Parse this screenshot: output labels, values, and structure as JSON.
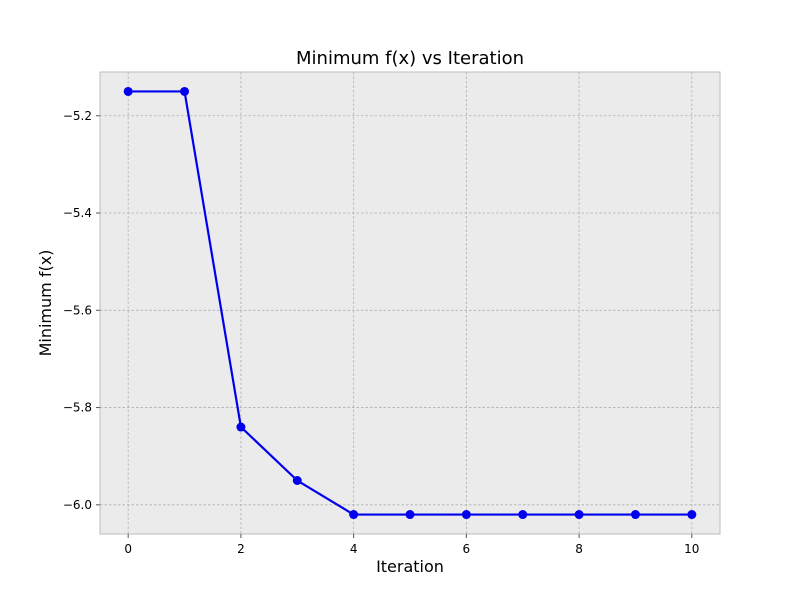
{
  "chart_data": {
    "type": "line",
    "title": "Minimum f(x) vs Iteration",
    "xlabel": "Iteration",
    "ylabel": "Minimum f(x)",
    "x": [
      0,
      1,
      2,
      3,
      4,
      5,
      6,
      7,
      8,
      9,
      10
    ],
    "series": [
      {
        "values": [
          -5.15,
          -5.15,
          -5.84,
          -5.95,
          -6.02,
          -6.02,
          -6.02,
          -6.02,
          -6.02,
          -6.02,
          -6.02
        ],
        "color": "#0000ee",
        "marker": "circle"
      }
    ],
    "xlim": [
      -0.5,
      10.5
    ],
    "ylim": [
      -6.06,
      -5.11
    ],
    "xticks": [
      0,
      2,
      4,
      6,
      8,
      10
    ],
    "xtick_labels": [
      "0",
      "2",
      "4",
      "6",
      "8",
      "10"
    ],
    "yticks": [
      -5.2,
      -5.4,
      -5.6,
      -5.8,
      -6.0
    ],
    "ytick_labels": [
      "−5.2",
      "−5.4",
      "−5.6",
      "−5.8",
      "−6.0"
    ],
    "grid": true,
    "background_color": "#ebebeb"
  }
}
